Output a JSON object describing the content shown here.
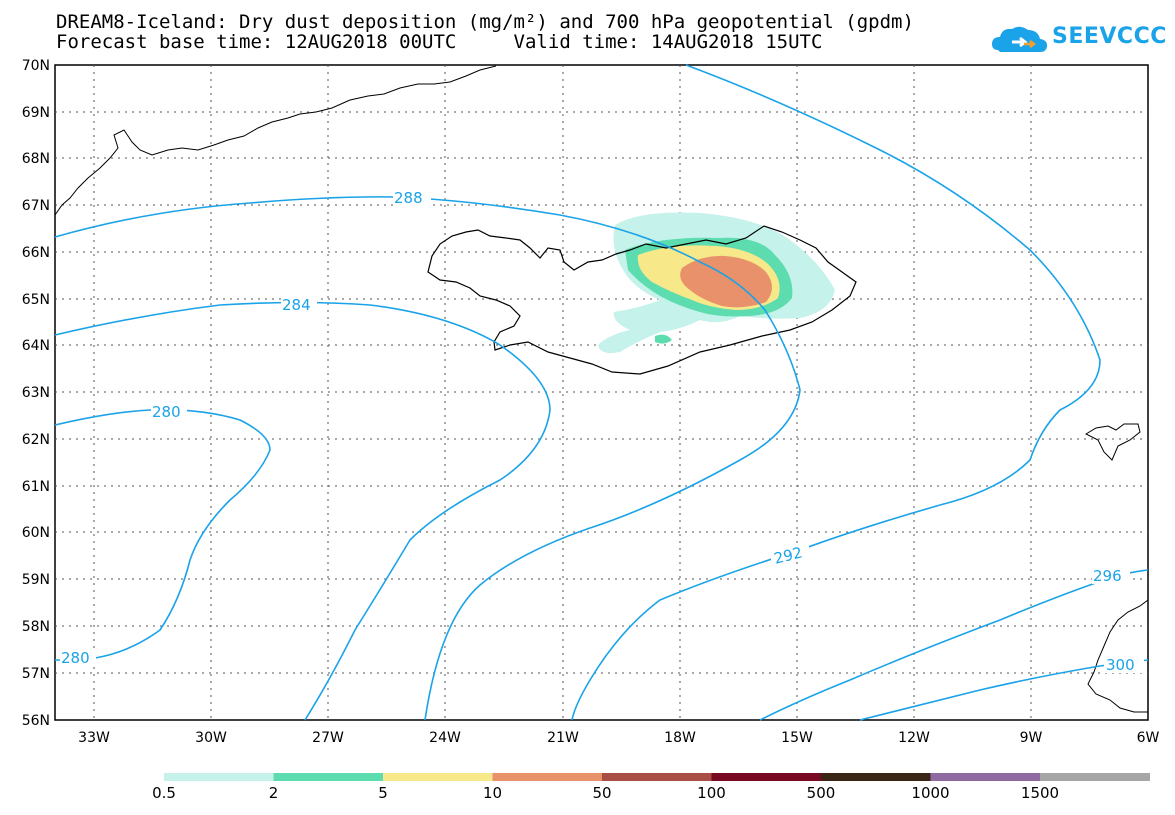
{
  "title": {
    "line1": "DREAM8-Iceland: Dry dust deposition (mg/m²) and 700 hPa geopotential (gpdm)",
    "line2": "Forecast base time: 12AUG2018 00UTC     Valid time: 14AUG2018 15UTC"
  },
  "logo": {
    "text": "SEEVCCC",
    "icon": "cloud-icon",
    "color": "#1aa3e8"
  },
  "map": {
    "lat_labels": [
      "70N",
      "69N",
      "68N",
      "67N",
      "66N",
      "65N",
      "64N",
      "63N",
      "62N",
      "61N",
      "60N",
      "59N",
      "58N",
      "57N",
      "56N"
    ],
    "lon_labels": [
      "33W",
      "30W",
      "27W",
      "24W",
      "21W",
      "18W",
      "15W",
      "12W",
      "9W",
      "6W"
    ],
    "contour_labels": [
      "288",
      "284",
      "280",
      "280",
      "292",
      "296",
      "300"
    ],
    "contour_color": "#1aa3e8"
  },
  "legend": {
    "labels": [
      "0.5",
      "2",
      "5",
      "10",
      "50",
      "100",
      "500",
      "1000",
      "1500"
    ],
    "colors": [
      "#c5f2ea",
      "#5ddcb0",
      "#f7e88a",
      "#e8916a",
      "#a84e44",
      "#7a0a23",
      "#3b2515",
      "#8f6aa0",
      "#a6a6a6"
    ]
  }
}
